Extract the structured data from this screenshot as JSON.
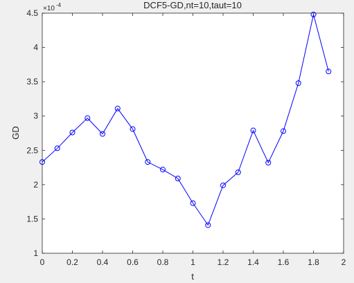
{
  "chart_data": {
    "type": "line",
    "title": "DCF5-GD,nt=10,taut=10",
    "x_label": "t",
    "y_label": "GD",
    "y_exponent": {
      "base": "×10",
      "power": "-4"
    },
    "x": [
      0,
      0.1,
      0.2,
      0.3,
      0.4,
      0.5,
      0.6,
      0.7,
      0.8,
      0.9,
      1.0,
      1.1,
      1.2,
      1.3,
      1.4,
      1.5,
      1.6,
      1.7,
      1.8,
      1.9
    ],
    "series": [
      {
        "name": "GD",
        "color": "#0000ff",
        "marker": "circle",
        "values": [
          2.33,
          2.53,
          2.76,
          2.97,
          2.74,
          3.11,
          2.81,
          2.33,
          2.22,
          2.09,
          1.73,
          1.41,
          1.99,
          2.18,
          2.79,
          2.32,
          2.78,
          3.48,
          4.48,
          3.65
        ]
      }
    ],
    "xlim": [
      0,
      2
    ],
    "xticks": [
      0,
      0.2,
      0.4,
      0.6,
      0.8,
      1,
      1.2,
      1.4,
      1.6,
      1.8,
      2
    ],
    "ylim": [
      1,
      4.5
    ],
    "yticks": [
      1,
      1.5,
      2,
      2.5,
      3,
      3.5,
      4,
      4.5
    ],
    "grid": false
  }
}
